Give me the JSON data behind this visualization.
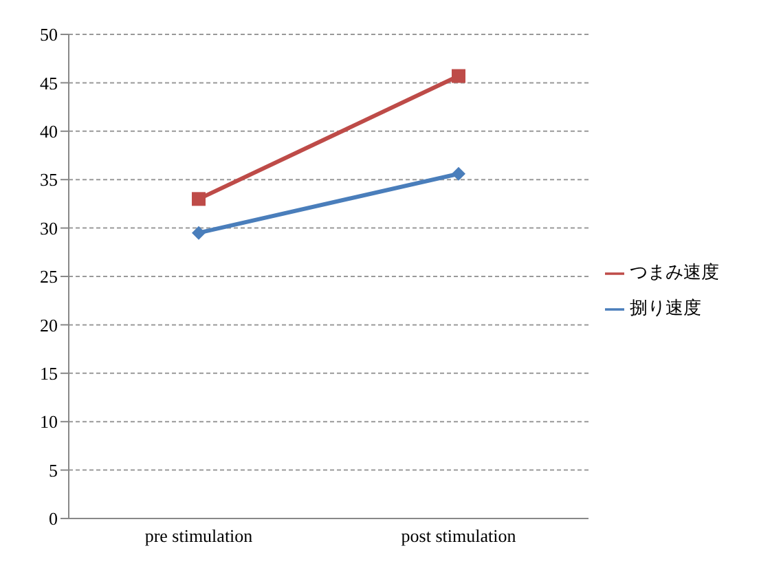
{
  "chart_data": {
    "type": "line",
    "categories": [
      "pre stimulation",
      "post stimulation"
    ],
    "series": [
      {
        "name": "捌り速度",
        "color": "#4a7ebb",
        "values": [
          29.5,
          35.6
        ],
        "marker": "diamond"
      },
      {
        "name": "つまみ速度",
        "color": "#be4b48",
        "values": [
          33.0,
          45.7
        ],
        "marker": "square"
      }
    ],
    "ylim": [
      0,
      50
    ],
    "yticks": [
      0,
      5,
      10,
      15,
      20,
      25,
      30,
      35,
      40,
      45,
      50
    ],
    "grid": "y",
    "legend": "right"
  }
}
